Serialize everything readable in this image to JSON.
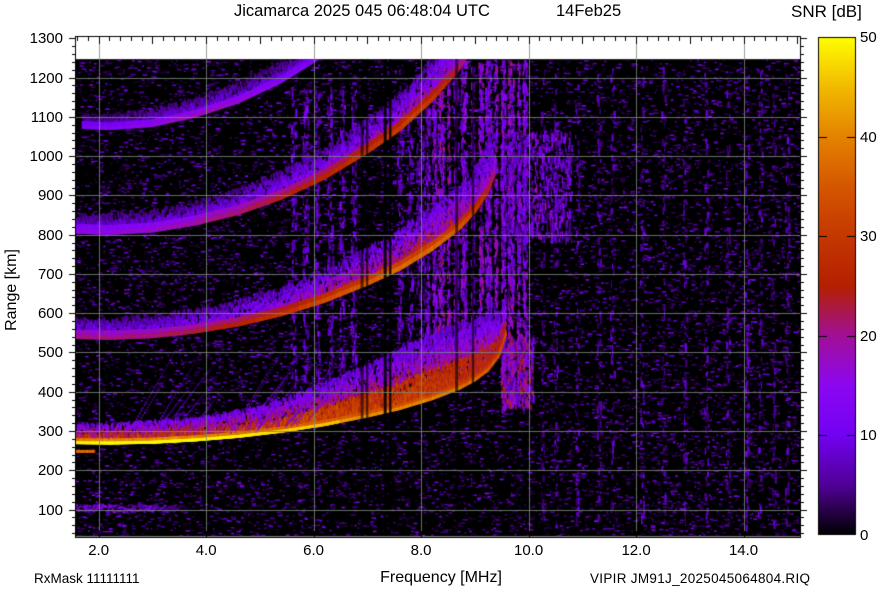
{
  "title": "Jicamarca 2025 045 06:48:04 UTC",
  "date_label": "14Feb25",
  "footer": {
    "rx_mask": "RxMask 11111111",
    "file_label": "VIPIR  JM91J_2025045064804.RIQ"
  },
  "chart_data": {
    "type": "heatmap",
    "title": "Jicamarca 2025 045 06:48:04 UTC",
    "date_label": "14Feb25",
    "station": "Jicamarca",
    "xlabel": "Frequency [MHz]",
    "ylabel": "Range [km]",
    "colorbar_label": "SNR [dB]",
    "xlim": [
      1.56,
      15.05
    ],
    "ylim": [
      30,
      1306
    ],
    "clim": [
      0,
      50
    ],
    "x_ticks": [
      2,
      4,
      6,
      8,
      10,
      12,
      14
    ],
    "x_tick_labels": [
      "2.0",
      "4.0",
      "6.0",
      "8.0",
      "10.0",
      "12.0",
      "14.0"
    ],
    "y_ticks": [
      100,
      200,
      300,
      400,
      500,
      600,
      700,
      800,
      900,
      1000,
      1100,
      1200,
      1300
    ],
    "colorbar_ticks": [
      0,
      10,
      20,
      30,
      40,
      50
    ],
    "grid": true,
    "grid_color": "#7d8a7d",
    "background_color": "#000000",
    "data_top_range_km": 1247,
    "critical_frequency_MHz": 9.6,
    "palette_stops": [
      [
        0,
        "#000000"
      ],
      [
        5,
        "#510096"
      ],
      [
        10,
        "#7202F2"
      ],
      [
        15,
        "#8C07F2"
      ],
      [
        20,
        "#A11096"
      ],
      [
        25,
        "#B42000"
      ],
      [
        30,
        "#C53700"
      ],
      [
        35,
        "#D55700"
      ],
      [
        40,
        "#E48300"
      ],
      [
        45,
        "#F2BA00"
      ],
      [
        50,
        "#FFFF00"
      ]
    ],
    "virtual_height_profile_km": [
      [
        1.56,
        268
      ],
      [
        2.2,
        267
      ],
      [
        3.0,
        269
      ],
      [
        3.8,
        275
      ],
      [
        4.6,
        284
      ],
      [
        5.4,
        297
      ],
      [
        6.2,
        314
      ],
      [
        7.0,
        336
      ],
      [
        7.6,
        355
      ],
      [
        8.2,
        380
      ],
      [
        8.7,
        406
      ],
      [
        9.0,
        428
      ],
      [
        9.25,
        454
      ],
      [
        9.45,
        490
      ],
      [
        9.58,
        545
      ]
    ],
    "echo_traces": [
      {
        "name": "F-layer 1-hop",
        "range_multiple": 1,
        "f_range": [
          1.56,
          9.58
        ],
        "core_thickness_km": 14,
        "snr_profile": [
          [
            1.56,
            46
          ],
          [
            2.2,
            48
          ],
          [
            3.5,
            48
          ],
          [
            5.0,
            45
          ],
          [
            6.0,
            43
          ],
          [
            7.0,
            41
          ],
          [
            8.0,
            40
          ],
          [
            8.7,
            38
          ],
          [
            9.2,
            36
          ],
          [
            9.58,
            32
          ]
        ],
        "spread_above_km": [
          [
            1.56,
            35
          ],
          [
            4.0,
            45
          ],
          [
            5.0,
            58
          ],
          [
            5.5,
            72
          ],
          [
            6.0,
            88
          ],
          [
            7.0,
            118
          ],
          [
            8.0,
            150
          ],
          [
            8.7,
            152
          ],
          [
            9.2,
            132
          ],
          [
            9.58,
            85
          ]
        ]
      },
      {
        "name": "2-hop multiple",
        "range_multiple": 2,
        "f_range": [
          1.56,
          9.38
        ],
        "core_thickness_km": 22,
        "snr_profile": [
          [
            1.56,
            20
          ],
          [
            3.0,
            21
          ],
          [
            4.5,
            25
          ],
          [
            5.5,
            29
          ],
          [
            6.5,
            34
          ],
          [
            7.5,
            37
          ],
          [
            8.3,
            37
          ],
          [
            8.8,
            34
          ],
          [
            9.1,
            28
          ],
          [
            9.38,
            22
          ]
        ],
        "spread_above_km": [
          [
            1.56,
            28
          ],
          [
            4.0,
            38
          ],
          [
            6.0,
            58
          ],
          [
            7.0,
            72
          ],
          [
            8.0,
            85
          ],
          [
            9.0,
            95
          ],
          [
            9.38,
            125
          ]
        ]
      },
      {
        "name": "3-hop multiple",
        "range_multiple": 3,
        "f_range": [
          1.56,
          8.85
        ],
        "core_thickness_km": 24,
        "snr_profile": [
          [
            1.56,
            15
          ],
          [
            3.0,
            17
          ],
          [
            4.5,
            21
          ],
          [
            5.5,
            24
          ],
          [
            6.5,
            27
          ],
          [
            7.3,
            30
          ],
          [
            7.9,
            31
          ],
          [
            8.4,
            28
          ],
          [
            8.85,
            20
          ]
        ],
        "spread_above_km": [
          [
            1.56,
            26
          ],
          [
            4.0,
            36
          ],
          [
            6.0,
            52
          ],
          [
            7.0,
            62
          ],
          [
            8.0,
            72
          ],
          [
            8.85,
            85
          ]
        ]
      },
      {
        "name": "4-hop multiple",
        "range_multiple": 4,
        "f_range": [
          1.7,
          6.5
        ],
        "core_thickness_km": 18,
        "snr_profile": [
          [
            1.7,
            12
          ],
          [
            2.5,
            14
          ],
          [
            3.6,
            18
          ],
          [
            4.3,
            18
          ],
          [
            5.0,
            15
          ],
          [
            6.0,
            13
          ],
          [
            6.5,
            11
          ]
        ],
        "spread_above_km": [
          [
            1.7,
            16
          ],
          [
            3.0,
            26
          ],
          [
            5.0,
            36
          ],
          [
            6.5,
            42
          ]
        ]
      }
    ],
    "e_region_echo": {
      "f_range": [
        1.56,
        3.7
      ],
      "range_km": [
        95,
        114
      ],
      "peak_snr_dB": 18
    },
    "rfi_dark_lines_MHz": [
      6.9,
      7.0,
      7.33,
      7.43,
      8.66,
      8.97
    ],
    "noise_stripes": {
      "strong_MHz": [
        8.12,
        8.24,
        8.36,
        8.5,
        8.64,
        8.78,
        8.95,
        9.1,
        9.24,
        9.38,
        9.52,
        9.66,
        9.8,
        9.92
      ],
      "medium_MHz": [
        5.62,
        5.84,
        6.06,
        6.3,
        6.52,
        6.74,
        7.6,
        7.78,
        7.95,
        8.05
      ],
      "faint_MHz": [
        10.25,
        10.5,
        10.9,
        11.3,
        11.55,
        12.1,
        12.5,
        12.9,
        13.3,
        13.7,
        14.05,
        14.3,
        14.55,
        14.8
      ],
      "spread_plume_1hop_MHz": [
        9.5,
        10.05
      ],
      "spread_plume_2hop_MHz": [
        9.5,
        10.8
      ]
    }
  }
}
